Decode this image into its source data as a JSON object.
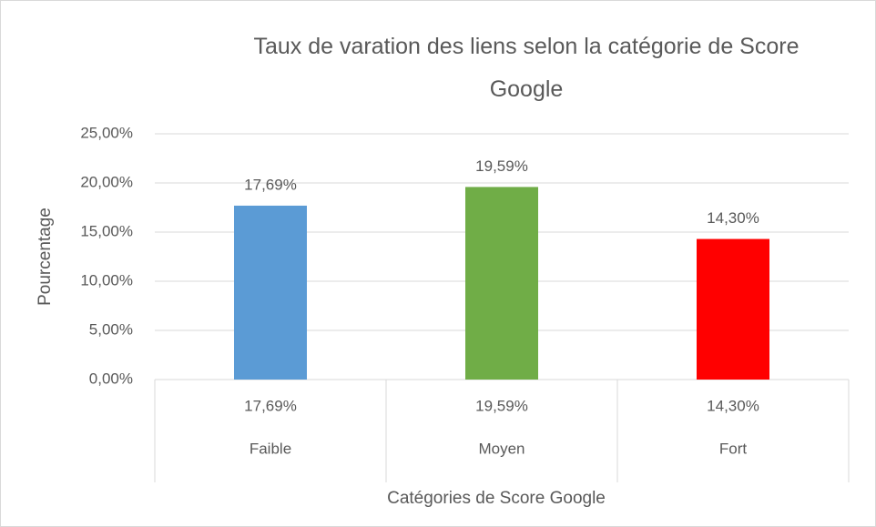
{
  "chart_data": {
    "type": "bar",
    "title": "Taux de varation des liens selon la catégorie de Score Google",
    "x_label": "Catégories de Score Google",
    "y_label": "Pourcentage",
    "categories": [
      "Faible",
      "Moyen",
      "Fort"
    ],
    "values": [
      17.69,
      19.59,
      14.3
    ],
    "value_labels": [
      "17,69%",
      "19,59%",
      "14,30%"
    ],
    "colors": [
      "#5b9bd5",
      "#70ad47",
      "#ff0000"
    ],
    "ylim": [
      0,
      25
    ],
    "yticks": [
      {
        "value": 0,
        "label": "0,00%"
      },
      {
        "value": 5,
        "label": "5,00%"
      },
      {
        "value": 10,
        "label": "10,00%"
      },
      {
        "value": 15,
        "label": "15,00%"
      },
      {
        "value": 20,
        "label": "20,00%"
      },
      {
        "value": 25,
        "label": "25,00%"
      }
    ],
    "grid": true
  }
}
